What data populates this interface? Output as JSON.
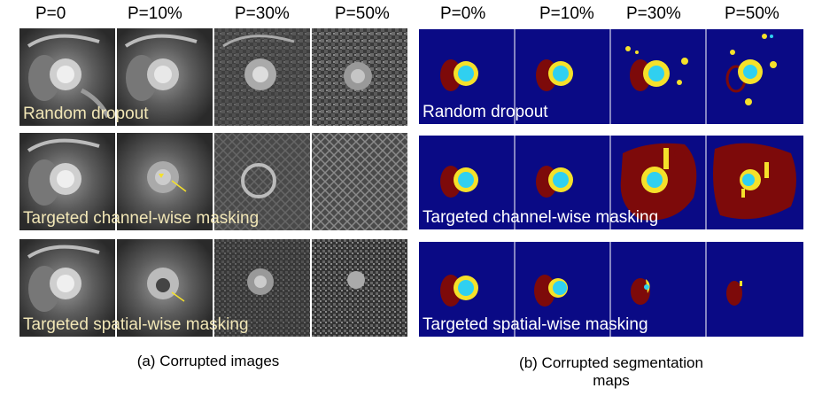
{
  "left_panel": {
    "column_labels": [
      "P=0",
      "P=10%",
      "P=30%",
      "P=50%"
    ],
    "stray_mark": "%",
    "rows": [
      {
        "label": "Random dropout"
      },
      {
        "label": "Targeted channel-wise masking"
      },
      {
        "label": "Targeted spatial-wise masking"
      }
    ],
    "caption": "(a) Corrupted images"
  },
  "right_panel": {
    "column_labels": [
      "P=0%",
      "P=10%",
      "P=30%",
      "P=50%"
    ],
    "rows": [
      {
        "label": "Random dropout"
      },
      {
        "label": "Targeted channel-wise masking"
      },
      {
        "label": "Targeted spatial-wise masking"
      }
    ],
    "caption_line1": "(b) Corrupted segmentation",
    "caption_line2": "maps"
  },
  "colors": {
    "seg_background": "#0a0a85",
    "left_ventricle": "#30d0f0",
    "myocardium": "#f5e12a",
    "right_ventricle": "#7d0a0a",
    "annotation_arrow": "#f5e12a"
  }
}
